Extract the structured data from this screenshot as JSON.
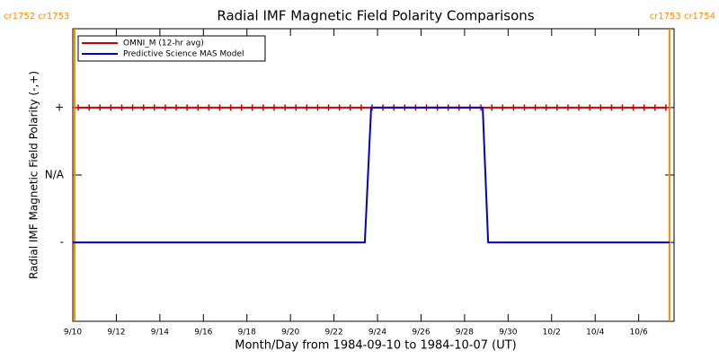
{
  "chart_data": {
    "type": "line",
    "title": "Radial IMF Magnetic Field Polarity Comparisons",
    "xlabel": "Month/Day from 1984-09-10 to 1984-10-07 (UT)",
    "ylabel": "Radial IMF Magnetic Field Polarity (-,+)",
    "xlim": [
      "1984-09-10T00:00",
      "1984-10-07T15:00"
    ],
    "xticks": [
      {
        "value": "1984-09-10T00:00",
        "label": "9/10"
      },
      {
        "value": "1984-09-12T00:00",
        "label": "9/12"
      },
      {
        "value": "1984-09-14T00:00",
        "label": "9/14"
      },
      {
        "value": "1984-09-16T00:00",
        "label": "9/16"
      },
      {
        "value": "1984-09-18T00:00",
        "label": "9/18"
      },
      {
        "value": "1984-09-20T00:00",
        "label": "9/20"
      },
      {
        "value": "1984-09-22T00:00",
        "label": "9/22"
      },
      {
        "value": "1984-09-24T00:00",
        "label": "9/24"
      },
      {
        "value": "1984-09-26T00:00",
        "label": "9/26"
      },
      {
        "value": "1984-09-28T00:00",
        "label": "9/28"
      },
      {
        "value": "1984-09-30T00:00",
        "label": "9/30"
      },
      {
        "value": "1984-10-02T00:00",
        "label": "10/2"
      },
      {
        "value": "1984-10-04T00:00",
        "label": "10/4"
      },
      {
        "value": "1984-10-06T00:00",
        "label": "10/6"
      }
    ],
    "ylim": [
      -2.17,
      2.17
    ],
    "yticks": [
      {
        "value": -1,
        "label": "-"
      },
      {
        "value": 0,
        "label": "N/A"
      },
      {
        "value": 1,
        "label": "+"
      }
    ],
    "legend": "upper left",
    "series": [
      {
        "name": "OMNI_M (12-hr avg)",
        "color": "#cc0000",
        "marker": "+",
        "x": [
          "1984-09-10T06:00",
          "1984-09-10T18:00",
          "1984-09-11T06:00",
          "1984-09-11T18:00",
          "1984-09-12T06:00",
          "1984-09-12T18:00",
          "1984-09-13T06:00",
          "1984-09-13T18:00",
          "1984-09-14T06:00",
          "1984-09-14T18:00",
          "1984-09-15T06:00",
          "1984-09-15T18:00",
          "1984-09-16T06:00",
          "1984-09-16T18:00",
          "1984-09-17T06:00",
          "1984-09-17T18:00",
          "1984-09-18T06:00",
          "1984-09-18T18:00",
          "1984-09-19T06:00",
          "1984-09-19T18:00",
          "1984-09-20T06:00",
          "1984-09-20T18:00",
          "1984-09-21T06:00",
          "1984-09-21T18:00",
          "1984-09-22T06:00",
          "1984-09-22T18:00",
          "1984-09-23T06:00",
          "1984-09-23T18:00",
          "1984-09-24T06:00",
          "1984-09-24T18:00",
          "1984-09-25T06:00",
          "1984-09-25T18:00",
          "1984-09-26T06:00",
          "1984-09-26T18:00",
          "1984-09-27T06:00",
          "1984-09-27T18:00",
          "1984-09-28T06:00",
          "1984-09-28T18:00",
          "1984-09-29T06:00",
          "1984-09-29T18:00",
          "1984-09-30T06:00",
          "1984-09-30T18:00",
          "1984-10-01T06:00",
          "1984-10-01T18:00",
          "1984-10-02T06:00",
          "1984-10-02T18:00",
          "1984-10-03T06:00",
          "1984-10-03T18:00",
          "1984-10-04T06:00",
          "1984-10-04T18:00",
          "1984-10-05T06:00",
          "1984-10-05T18:00",
          "1984-10-06T06:00",
          "1984-10-06T18:00",
          "1984-10-07T06:00"
        ],
        "values": [
          1,
          1,
          1,
          1,
          1,
          1,
          1,
          1,
          1,
          1,
          1,
          1,
          1,
          1,
          1,
          1,
          1,
          1,
          1,
          1,
          1,
          1,
          1,
          1,
          1,
          1,
          1,
          1,
          1,
          1,
          1,
          1,
          1,
          1,
          1,
          1,
          1,
          1,
          1,
          1,
          1,
          1,
          1,
          1,
          1,
          1,
          1,
          1,
          1,
          1,
          1,
          1,
          1,
          1,
          1
        ]
      },
      {
        "name": "Predictive Science MAS Model",
        "color": "#0000cc",
        "x": [
          "1984-09-10T00:00",
          "1984-09-23T10:00",
          "1984-09-23T17:00",
          "1984-09-28T20:00",
          "1984-09-29T02:00",
          "1984-10-07T10:00"
        ],
        "values": [
          -1,
          -1,
          1,
          1,
          -1,
          -1
        ]
      }
    ],
    "annotations": [
      {
        "text": "cr1752 cr1753",
        "x": "1984-09-10T02:00",
        "color": "#ff8c00"
      },
      {
        "text": "cr1753 cr1754",
        "x": "1984-10-07T10:00",
        "color": "#ff8c00"
      }
    ]
  }
}
